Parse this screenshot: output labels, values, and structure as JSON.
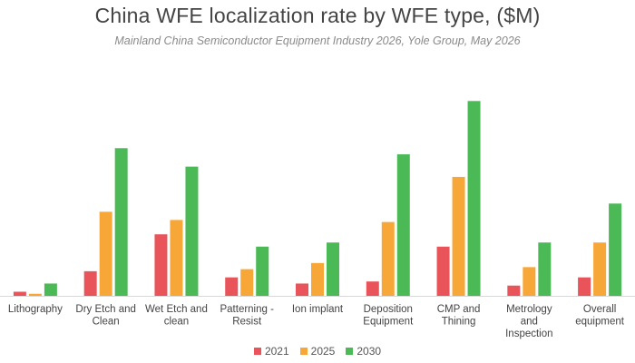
{
  "chart_data": {
    "type": "bar",
    "title": "China WFE localization rate by WFE type, ($M)",
    "subtitle": "Mainland China Semiconductor Equipment Industry 2026, Yole Group, May 2026",
    "xlabel": "",
    "ylabel": "",
    "grid": false,
    "legend_position": "bottom",
    "categories": [
      [
        "Lithography"
      ],
      [
        "Dry Etch and",
        "Clean"
      ],
      [
        "Wet Etch and",
        "clean"
      ],
      [
        "Patterning -",
        "Resist"
      ],
      [
        "Ion implant"
      ],
      [
        "Deposition",
        "Equipment"
      ],
      [
        "CMP and",
        "Thining"
      ],
      [
        "Metrology",
        "and",
        "Inspection"
      ],
      [
        "Overall",
        "equipment"
      ]
    ],
    "series": [
      {
        "name": "2021",
        "color": "#e8545a",
        "values": [
          2,
          12,
          30,
          9,
          6,
          7,
          24,
          5,
          9
        ]
      },
      {
        "name": "2025",
        "color": "#f7a738",
        "values": [
          1,
          41,
          37,
          13,
          16,
          36,
          58,
          14,
          26
        ]
      },
      {
        "name": "2030",
        "color": "#4cb957",
        "values": [
          6,
          72,
          63,
          24,
          26,
          69,
          95,
          26,
          45
        ]
      }
    ],
    "ylim": [
      0,
      100
    ]
  }
}
